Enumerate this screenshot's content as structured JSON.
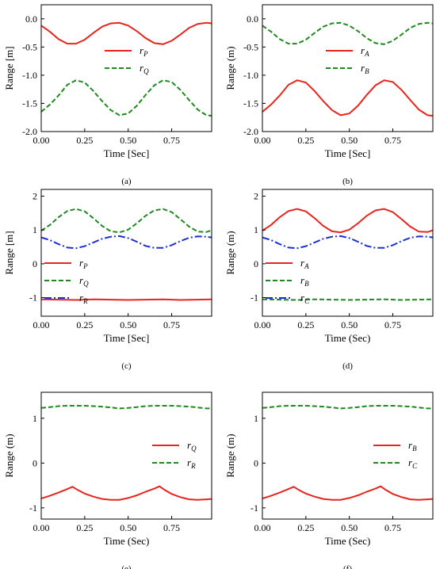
{
  "chart_data": [
    {
      "id": "a",
      "type": "line",
      "caption": "(a)",
      "xlabel": "Time [Sec]",
      "ylabel": "Range [m]",
      "xlim": [
        0.0,
        0.98
      ],
      "ylim": [
        -2.0,
        0.25
      ],
      "xticks": [
        0.0,
        0.25,
        0.5,
        0.75
      ],
      "xtick_labels": [
        "0.00",
        "0.25",
        "0.50",
        "0.75"
      ],
      "yticks": [
        0.0,
        -0.5,
        -1.0,
        -1.5,
        -2.0
      ],
      "ytick_labels": [
        "0.0",
        "-0.5",
        "-1.0",
        "-1.5",
        "-2.0"
      ],
      "legend": "center-right",
      "series": [
        {
          "name": "rP",
          "symbol": "r",
          "subscript": "P",
          "color": "#e8251c",
          "style": "solid",
          "x": [
            0.0,
            0.05,
            0.1,
            0.15,
            0.2,
            0.25,
            0.3,
            0.35,
            0.4,
            0.45,
            0.5,
            0.55,
            0.6,
            0.65,
            0.7,
            0.75,
            0.8,
            0.85,
            0.9,
            0.95,
            0.98
          ],
          "y": [
            -0.12,
            -0.23,
            -0.36,
            -0.44,
            -0.44,
            -0.37,
            -0.25,
            -0.14,
            -0.08,
            -0.07,
            -0.12,
            -0.22,
            -0.34,
            -0.43,
            -0.45,
            -0.39,
            -0.28,
            -0.16,
            -0.09,
            -0.07,
            -0.08
          ]
        },
        {
          "name": "rQ",
          "symbol": "r",
          "subscript": "Q",
          "color": "#1e8a1e",
          "style": "dashed",
          "x": [
            0.0,
            0.05,
            0.1,
            0.15,
            0.2,
            0.25,
            0.3,
            0.35,
            0.4,
            0.45,
            0.5,
            0.55,
            0.6,
            0.65,
            0.7,
            0.75,
            0.8,
            0.85,
            0.9,
            0.95,
            0.98
          ],
          "y": [
            -1.65,
            -1.52,
            -1.36,
            -1.17,
            -1.09,
            -1.13,
            -1.28,
            -1.46,
            -1.62,
            -1.71,
            -1.68,
            -1.54,
            -1.35,
            -1.18,
            -1.09,
            -1.12,
            -1.26,
            -1.44,
            -1.61,
            -1.71,
            -1.72
          ]
        }
      ]
    },
    {
      "id": "b",
      "type": "line",
      "caption": "(b)",
      "xlabel": "Time [Sec]",
      "ylabel": "Range (m)",
      "xlim": [
        0.0,
        0.98
      ],
      "ylim": [
        -2.0,
        0.25
      ],
      "xticks": [
        0.0,
        0.25,
        0.5,
        0.75
      ],
      "xtick_labels": [
        "0.00",
        "0.25",
        "0.50",
        "0.75"
      ],
      "yticks": [
        0.0,
        -0.5,
        -1.0,
        -1.5,
        -2.0
      ],
      "ytick_labels": [
        "0.0",
        "-0.5",
        "-1.0",
        "-1.5",
        "-2.0"
      ],
      "legend": "center-right",
      "series": [
        {
          "name": "rA",
          "symbol": "r",
          "subscript": "A",
          "color": "#e8251c",
          "style": "solid",
          "x": [
            0.0,
            0.05,
            0.1,
            0.15,
            0.2,
            0.25,
            0.3,
            0.35,
            0.4,
            0.45,
            0.5,
            0.55,
            0.6,
            0.65,
            0.7,
            0.75,
            0.8,
            0.85,
            0.9,
            0.95,
            0.98
          ],
          "y": [
            -1.65,
            -1.52,
            -1.36,
            -1.17,
            -1.09,
            -1.13,
            -1.28,
            -1.46,
            -1.62,
            -1.71,
            -1.68,
            -1.54,
            -1.35,
            -1.18,
            -1.09,
            -1.12,
            -1.26,
            -1.44,
            -1.61,
            -1.71,
            -1.72
          ]
        },
        {
          "name": "rB",
          "symbol": "r",
          "subscript": "B",
          "color": "#1e8a1e",
          "style": "dashed",
          "x": [
            0.0,
            0.05,
            0.1,
            0.15,
            0.2,
            0.25,
            0.3,
            0.35,
            0.4,
            0.45,
            0.5,
            0.55,
            0.6,
            0.65,
            0.7,
            0.75,
            0.8,
            0.85,
            0.9,
            0.95,
            0.98
          ],
          "y": [
            -0.12,
            -0.23,
            -0.36,
            -0.44,
            -0.44,
            -0.37,
            -0.25,
            -0.14,
            -0.08,
            -0.07,
            -0.12,
            -0.22,
            -0.34,
            -0.43,
            -0.45,
            -0.39,
            -0.28,
            -0.16,
            -0.09,
            -0.07,
            -0.08
          ]
        }
      ]
    },
    {
      "id": "c",
      "type": "line",
      "caption": "(c)",
      "xlabel": "Time [Sec]",
      "ylabel": "Range [m]",
      "xlim": [
        0.0,
        0.98
      ],
      "ylim": [
        -1.55,
        2.2
      ],
      "xticks": [
        0.0,
        0.25,
        0.5,
        0.75
      ],
      "xtick_labels": [
        "0.00",
        "0.25",
        "0.50",
        "0.75"
      ],
      "yticks": [
        2,
        1,
        0,
        -1
      ],
      "ytick_labels": [
        "2",
        "1",
        "0",
        "-1"
      ],
      "legend": "lower-left",
      "series": [
        {
          "name": "rP",
          "symbol": "r",
          "subscript": "P",
          "color": "#e8251c",
          "style": "solid",
          "x": [
            0.0,
            0.1,
            0.2,
            0.3,
            0.4,
            0.5,
            0.6,
            0.7,
            0.8,
            0.9,
            0.98
          ],
          "y": [
            -1.05,
            -1.06,
            -1.07,
            -1.05,
            -1.06,
            -1.07,
            -1.06,
            -1.05,
            -1.07,
            -1.06,
            -1.05
          ]
        },
        {
          "name": "rQ",
          "symbol": "r",
          "subscript": "Q",
          "color": "#1e8a1e",
          "style": "dashed",
          "x": [
            0.0,
            0.05,
            0.1,
            0.15,
            0.2,
            0.25,
            0.3,
            0.35,
            0.4,
            0.45,
            0.5,
            0.55,
            0.6,
            0.65,
            0.7,
            0.75,
            0.8,
            0.85,
            0.9,
            0.95,
            0.98
          ],
          "y": [
            0.98,
            1.15,
            1.38,
            1.56,
            1.62,
            1.55,
            1.35,
            1.12,
            0.96,
            0.93,
            1.01,
            1.2,
            1.42,
            1.58,
            1.62,
            1.53,
            1.32,
            1.1,
            0.95,
            0.94,
            0.99
          ]
        },
        {
          "name": "rR",
          "symbol": "r",
          "subscript": "R",
          "color": "#1a2fd6",
          "style": "dashdot",
          "x": [
            0.0,
            0.05,
            0.1,
            0.15,
            0.2,
            0.25,
            0.3,
            0.35,
            0.4,
            0.45,
            0.5,
            0.55,
            0.6,
            0.65,
            0.7,
            0.75,
            0.8,
            0.85,
            0.9,
            0.95,
            0.98
          ],
          "y": [
            0.78,
            0.7,
            0.58,
            0.48,
            0.46,
            0.52,
            0.63,
            0.74,
            0.8,
            0.82,
            0.76,
            0.65,
            0.53,
            0.47,
            0.47,
            0.55,
            0.67,
            0.77,
            0.81,
            0.8,
            0.78
          ]
        }
      ]
    },
    {
      "id": "d",
      "type": "line",
      "caption": "(d)",
      "xlabel": "Time (Sec)",
      "ylabel": "Range (m)",
      "xlim": [
        0.0,
        0.98
      ],
      "ylim": [
        -1.55,
        2.2
      ],
      "xticks": [
        0.0,
        0.25,
        0.5,
        0.75
      ],
      "xtick_labels": [
        "0.00",
        "0.25",
        "0.50",
        "0.75"
      ],
      "yticks": [
        2,
        1,
        0,
        -1
      ],
      "ytick_labels": [
        "2",
        "1",
        "0",
        "-1"
      ],
      "legend": "lower-left",
      "series": [
        {
          "name": "rA",
          "symbol": "r",
          "subscript": "A",
          "color": "#e8251c",
          "style": "solid",
          "x": [
            0.0,
            0.05,
            0.1,
            0.15,
            0.2,
            0.25,
            0.3,
            0.35,
            0.4,
            0.45,
            0.5,
            0.55,
            0.6,
            0.65,
            0.7,
            0.75,
            0.8,
            0.85,
            0.9,
            0.95,
            0.98
          ],
          "y": [
            0.98,
            1.15,
            1.38,
            1.56,
            1.62,
            1.55,
            1.35,
            1.12,
            0.96,
            0.93,
            1.01,
            1.2,
            1.42,
            1.58,
            1.62,
            1.53,
            1.32,
            1.1,
            0.95,
            0.94,
            0.99
          ]
        },
        {
          "name": "rB",
          "symbol": "r",
          "subscript": "B",
          "color": "#1e8a1e",
          "style": "dashed",
          "x": [
            0.0,
            0.1,
            0.2,
            0.3,
            0.4,
            0.5,
            0.6,
            0.7,
            0.8,
            0.9,
            0.98
          ],
          "y": [
            -1.05,
            -1.06,
            -1.07,
            -1.05,
            -1.06,
            -1.07,
            -1.06,
            -1.05,
            -1.07,
            -1.06,
            -1.05
          ]
        },
        {
          "name": "rC",
          "symbol": "r",
          "subscript": "C",
          "color": "#1a2fd6",
          "style": "dashdot",
          "x": [
            0.0,
            0.05,
            0.1,
            0.15,
            0.2,
            0.25,
            0.3,
            0.35,
            0.4,
            0.45,
            0.5,
            0.55,
            0.6,
            0.65,
            0.7,
            0.75,
            0.8,
            0.85,
            0.9,
            0.95,
            0.98
          ],
          "y": [
            0.78,
            0.7,
            0.58,
            0.48,
            0.46,
            0.52,
            0.63,
            0.74,
            0.8,
            0.82,
            0.76,
            0.65,
            0.53,
            0.47,
            0.47,
            0.55,
            0.67,
            0.77,
            0.81,
            0.8,
            0.78
          ]
        }
      ]
    },
    {
      "id": "e",
      "type": "line",
      "caption": "(e)",
      "xlabel": "Time (Sec)",
      "ylabel": "Range (m)",
      "xlim": [
        0.0,
        0.98
      ],
      "ylim": [
        -1.25,
        1.58
      ],
      "xticks": [
        0.0,
        0.25,
        0.5,
        0.75
      ],
      "xtick_labels": [
        "0.00",
        "0.25",
        "0.50",
        "0.75"
      ],
      "yticks": [
        1,
        0,
        -1
      ],
      "ytick_labels": [
        "1",
        "0",
        "-1"
      ],
      "legend": "center-right",
      "series": [
        {
          "name": "rQ",
          "symbol": "r",
          "subscript": "Q",
          "color": "#e8251c",
          "style": "solid",
          "x": [
            0.0,
            0.05,
            0.1,
            0.15,
            0.18,
            0.21,
            0.25,
            0.3,
            0.35,
            0.4,
            0.45,
            0.5,
            0.55,
            0.6,
            0.65,
            0.68,
            0.71,
            0.75,
            0.8,
            0.85,
            0.9,
            0.95,
            0.98
          ],
          "y": [
            -0.79,
            -0.73,
            -0.66,
            -0.58,
            -0.53,
            -0.6,
            -0.68,
            -0.75,
            -0.8,
            -0.82,
            -0.82,
            -0.78,
            -0.72,
            -0.64,
            -0.57,
            -0.52,
            -0.6,
            -0.69,
            -0.76,
            -0.81,
            -0.82,
            -0.81,
            -0.8
          ]
        },
        {
          "name": "rR",
          "symbol": "r",
          "subscript": "R",
          "color": "#1e8a1e",
          "style": "dashed",
          "x": [
            0.0,
            0.05,
            0.1,
            0.15,
            0.2,
            0.25,
            0.3,
            0.35,
            0.4,
            0.45,
            0.5,
            0.55,
            0.6,
            0.65,
            0.7,
            0.75,
            0.8,
            0.85,
            0.9,
            0.95,
            0.98
          ],
          "y": [
            1.23,
            1.25,
            1.27,
            1.28,
            1.28,
            1.28,
            1.27,
            1.26,
            1.24,
            1.22,
            1.23,
            1.25,
            1.27,
            1.28,
            1.28,
            1.28,
            1.27,
            1.26,
            1.24,
            1.22,
            1.22
          ]
        }
      ]
    },
    {
      "id": "f",
      "type": "line",
      "caption": "(f)",
      "xlabel": "Time (Sec)",
      "ylabel": "Range (m)",
      "xlim": [
        0.0,
        0.98
      ],
      "ylim": [
        -1.25,
        1.58
      ],
      "xticks": [
        0.0,
        0.25,
        0.5,
        0.75
      ],
      "xtick_labels": [
        "0.00",
        "0.25",
        "0.50",
        "0.75"
      ],
      "yticks": [
        1,
        0,
        -1
      ],
      "ytick_labels": [
        "1",
        "0",
        "-1"
      ],
      "legend": "center-right",
      "series": [
        {
          "name": "rB",
          "symbol": "r",
          "subscript": "B",
          "color": "#e8251c",
          "style": "solid",
          "x": [
            0.0,
            0.05,
            0.1,
            0.15,
            0.18,
            0.21,
            0.25,
            0.3,
            0.35,
            0.4,
            0.45,
            0.5,
            0.55,
            0.6,
            0.65,
            0.68,
            0.71,
            0.75,
            0.8,
            0.85,
            0.9,
            0.95,
            0.98
          ],
          "y": [
            -0.79,
            -0.73,
            -0.66,
            -0.58,
            -0.53,
            -0.6,
            -0.68,
            -0.75,
            -0.8,
            -0.82,
            -0.82,
            -0.78,
            -0.72,
            -0.64,
            -0.57,
            -0.52,
            -0.6,
            -0.69,
            -0.76,
            -0.81,
            -0.82,
            -0.81,
            -0.8
          ]
        },
        {
          "name": "rC",
          "symbol": "r",
          "subscript": "C",
          "color": "#1e8a1e",
          "style": "dashed",
          "x": [
            0.0,
            0.05,
            0.1,
            0.15,
            0.2,
            0.25,
            0.3,
            0.35,
            0.4,
            0.45,
            0.5,
            0.55,
            0.6,
            0.65,
            0.7,
            0.75,
            0.8,
            0.85,
            0.9,
            0.95,
            0.98
          ],
          "y": [
            1.23,
            1.25,
            1.27,
            1.28,
            1.28,
            1.28,
            1.27,
            1.26,
            1.24,
            1.22,
            1.23,
            1.25,
            1.27,
            1.28,
            1.28,
            1.28,
            1.27,
            1.26,
            1.24,
            1.22,
            1.22
          ]
        }
      ]
    }
  ]
}
